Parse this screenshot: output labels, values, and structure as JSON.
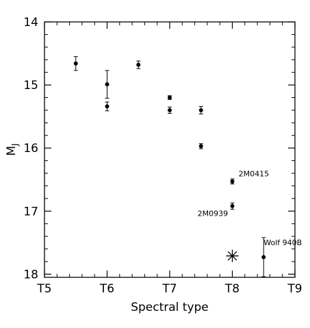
{
  "chart_data": {
    "type": "scatter",
    "xlabel": "Spectral type",
    "ylabel_main": "M",
    "ylabel_sub": "J",
    "xlim": [
      5,
      9
    ],
    "ylim": [
      18.05,
      14.0
    ],
    "y_inverted": true,
    "x_ticks": [
      {
        "value": 5,
        "label": "T5"
      },
      {
        "value": 6,
        "label": "T6"
      },
      {
        "value": 7,
        "label": "T7"
      },
      {
        "value": 8,
        "label": "T8"
      },
      {
        "value": 9,
        "label": "T9"
      }
    ],
    "y_ticks": [
      {
        "value": 14,
        "label": "14"
      },
      {
        "value": 15,
        "label": "15"
      },
      {
        "value": 16,
        "label": "16"
      },
      {
        "value": 17,
        "label": "17"
      },
      {
        "value": 18,
        "label": "18"
      }
    ],
    "points": [
      {
        "x": 5.5,
        "y": 14.66,
        "err": 0.11
      },
      {
        "x": 6.0,
        "y": 14.99,
        "err": 0.22
      },
      {
        "x": 6.0,
        "y": 15.34,
        "err": 0.07
      },
      {
        "x": 6.5,
        "y": 14.68,
        "err": 0.06
      },
      {
        "x": 7.0,
        "y": 15.2,
        "err": 0.03
      },
      {
        "x": 7.0,
        "y": 15.4,
        "err": 0.05
      },
      {
        "x": 7.5,
        "y": 15.4,
        "err": 0.06
      },
      {
        "x": 7.5,
        "y": 15.97,
        "err": 0.04
      },
      {
        "x": 8.0,
        "y": 16.53,
        "err": 0.04
      },
      {
        "x": 8.0,
        "y": 16.92,
        "err": 0.05
      },
      {
        "x": 8.5,
        "y": 17.73,
        "err": 0.31
      }
    ],
    "star_marker": {
      "x": 8.0,
      "y": 17.71
    },
    "annotations": [
      {
        "text": "2M0415",
        "x": 8.1,
        "y": 16.45,
        "anchor": "start"
      },
      {
        "text": "2M0939",
        "x": 7.93,
        "y": 17.08,
        "anchor": "end"
      },
      {
        "text": "Wolf 940B",
        "x": 8.5,
        "y": 17.54,
        "anchor": "start"
      }
    ]
  }
}
